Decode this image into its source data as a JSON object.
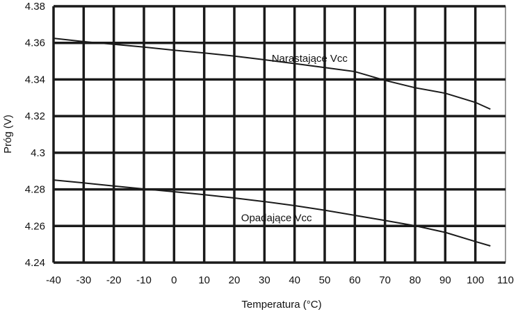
{
  "chart_data": {
    "type": "line",
    "title": "",
    "xlabel": "Temperatura (°C)",
    "ylabel": "Próg (V)",
    "xlim": [
      -40,
      110
    ],
    "ylim": [
      4.24,
      4.38
    ],
    "x_ticks": [
      -40,
      -30,
      -20,
      -10,
      0,
      10,
      20,
      30,
      40,
      50,
      60,
      70,
      80,
      90,
      100,
      110
    ],
    "y_ticks": [
      4.24,
      4.26,
      4.28,
      4.3,
      4.32,
      4.34,
      4.36,
      4.38
    ],
    "y_tick_labels": [
      "4.24",
      "4.26",
      "4.28",
      "4.3",
      "4.32",
      "4.34",
      "4.36",
      "4.38"
    ],
    "grid": true,
    "series": [
      {
        "name": "Narastające Vcc",
        "x": [
          -40,
          -30,
          -20,
          -10,
          0,
          10,
          20,
          30,
          40,
          50,
          60,
          70,
          80,
          90,
          100,
          105
        ],
        "y": [
          4.3625,
          4.3607,
          4.3592,
          4.3577,
          4.356,
          4.3545,
          4.3528,
          4.3508,
          4.3487,
          4.3465,
          4.3443,
          4.3395,
          4.3355,
          4.3325,
          4.3275,
          4.3238
        ],
        "label_at": [
          45,
          4.3515
        ]
      },
      {
        "name": "Opadające Vcc",
        "x": [
          -40,
          -30,
          -20,
          -10,
          0,
          10,
          20,
          30,
          40,
          50,
          60,
          70,
          80,
          90,
          100,
          105
        ],
        "y": [
          4.2851,
          4.2835,
          4.2818,
          4.2802,
          4.2787,
          4.2771,
          4.2753,
          4.2733,
          4.2711,
          4.2686,
          4.2658,
          4.263,
          4.2601,
          4.2565,
          4.2515,
          4.2491
        ],
        "label_at": [
          34,
          4.2645
        ]
      }
    ]
  }
}
